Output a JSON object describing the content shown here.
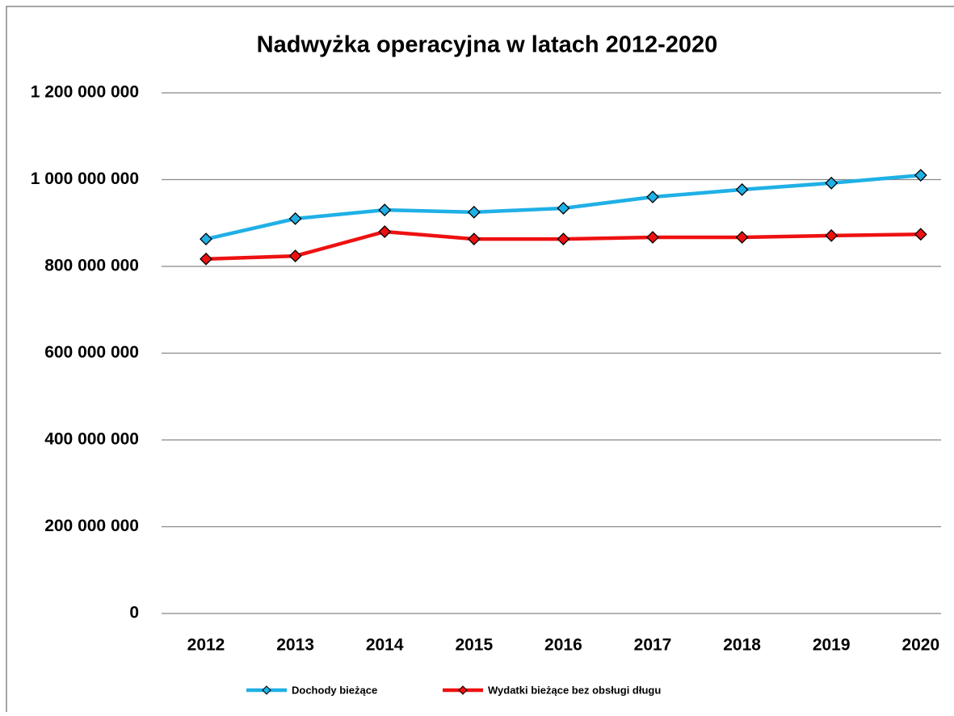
{
  "chart_data": {
    "type": "line",
    "title": "Nadwyżka operacyjna w latach 2012-2020",
    "categories": [
      "2012",
      "2013",
      "2014",
      "2015",
      "2016",
      "2017",
      "2018",
      "2019",
      "2020"
    ],
    "series": [
      {
        "name": "Dochody bieżące",
        "color": "#1fb0e6",
        "values": [
          863000000,
          910000000,
          930000000,
          925000000,
          934000000,
          960000000,
          977000000,
          992000000,
          1010000000
        ]
      },
      {
        "name": "Wydatki bieżące bez obsługi długu",
        "color": "#ee1111",
        "values": [
          817000000,
          824000000,
          880000000,
          863000000,
          863000000,
          867000000,
          867000000,
          871000000,
          874000000
        ]
      }
    ],
    "ylim": [
      0,
      1200000000
    ],
    "yticks": [
      0,
      {
        "value": 200000000,
        "label": "200 000 000"
      },
      {
        "value": 400000000,
        "label": "400 000 000"
      },
      {
        "value": 600000000,
        "label": "600 000 000"
      },
      {
        "value": 800000000,
        "label": "800 000 000"
      },
      {
        "value": 1000000000,
        "label": "1 000 000 000"
      },
      {
        "value": 1200000000,
        "label": "1 200 000 000"
      }
    ],
    "grid": true
  }
}
